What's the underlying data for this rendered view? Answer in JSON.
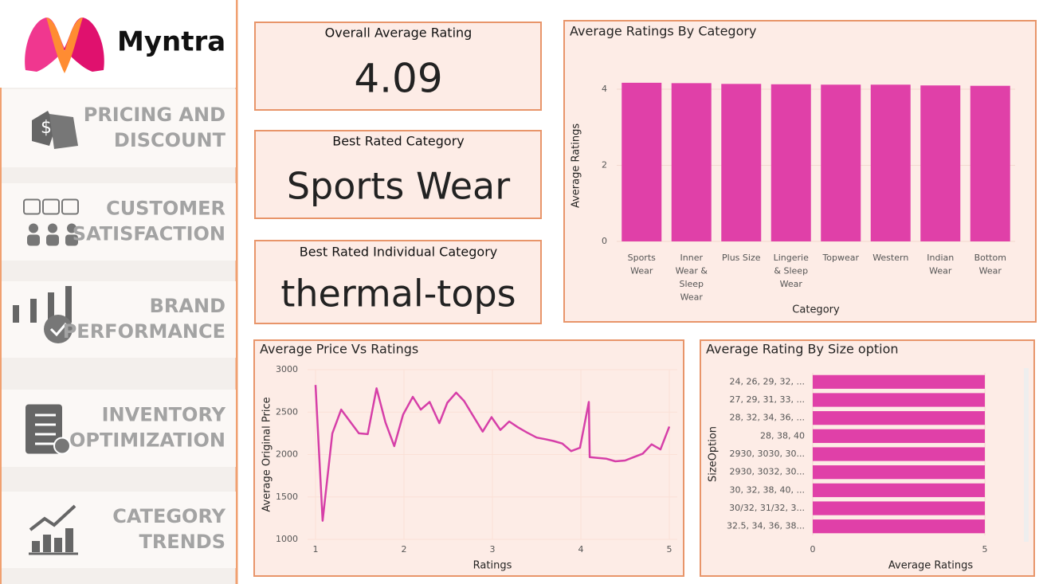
{
  "brand": "Myntra",
  "nav": [
    {
      "lines": [
        "PRICING AND",
        "DISCOUNT"
      ]
    },
    {
      "lines": [
        "CUSTOMER",
        "SATISFACTION"
      ]
    },
    {
      "lines": [
        "BRAND",
        "PERFORMANCE"
      ]
    },
    {
      "lines": [
        "INVENTORY",
        "OPTIMIZATION"
      ]
    },
    {
      "lines": [
        "CATEGORY",
        "TRENDS"
      ]
    }
  ],
  "cards": [
    {
      "title": "Overall Average Rating",
      "value": 4.09
    },
    {
      "title": "Best Rated Category",
      "value": "Sports Wear"
    },
    {
      "title": "Best Rated Individual Category",
      "value": "thermal-tops"
    }
  ],
  "chart_data": [
    {
      "type": "bar",
      "title": "Average Ratings By Category",
      "x_label": "Category",
      "y_label": "Average Ratings",
      "categories": [
        "Sports Wear",
        "Inner Wear & Sleep Wear",
        "Plus Size",
        "Lingerie & Sleep Wear",
        "Topwear",
        "Western",
        "Indian Wear",
        "Bottom Wear"
      ],
      "values": [
        4.17,
        4.16,
        4.14,
        4.13,
        4.12,
        4.12,
        4.1,
        4.09
      ],
      "color": "#e040a8",
      "ylim": [
        0,
        4.4
      ],
      "yticks": [
        0,
        2,
        4
      ]
    },
    {
      "type": "line",
      "title": "Average Price Vs Ratings",
      "x_label": "Ratings",
      "y_label": "Average Original Price",
      "x": [
        1.0,
        1.08,
        1.19,
        1.29,
        1.49,
        1.59,
        1.69,
        1.79,
        1.89,
        1.99,
        2.1,
        2.19,
        2.29,
        2.4,
        2.49,
        2.59,
        2.68,
        2.89,
        2.99,
        3.09,
        3.19,
        3.29,
        3.39,
        3.5,
        3.6,
        3.69,
        3.79,
        3.89,
        3.99,
        4.09,
        4.1,
        4.19,
        4.29,
        4.39,
        4.5,
        4.6,
        4.7,
        4.8,
        4.9,
        5.0
      ],
      "series": [
        {
          "name": "Average Original Price",
          "color": "#d63fa8",
          "values": [
            2820,
            1220,
            2250,
            2530,
            2250,
            2240,
            2780,
            2380,
            2100,
            2470,
            2680,
            2530,
            2620,
            2370,
            2610,
            2730,
            2630,
            2270,
            2440,
            2290,
            2390,
            2320,
            2260,
            2200,
            2180,
            2160,
            2130,
            2040,
            2080,
            2620,
            1970,
            1960,
            1950,
            1920,
            1930,
            1970,
            2010,
            2120,
            2060,
            2330
          ]
        }
      ],
      "xlim": [
        1,
        5
      ],
      "xticks": [
        1,
        2,
        3,
        4,
        5
      ],
      "ylim": [
        1000,
        3000
      ],
      "yticks": [
        1000,
        1500,
        2000,
        2500,
        3000
      ],
      "grid": true
    },
    {
      "type": "hbar",
      "title": "Average Rating By Size option",
      "x_label": "Average Ratings",
      "y_label": "SizeOption",
      "categories": [
        "24, 26, 29, 32, ...",
        "27, 29, 31, 33, ...",
        "28, 32, 34, 36, ...",
        "28, 38, 40",
        "2930, 3030, 30...",
        "2930, 3032, 30...",
        "30, 32, 38, 40, ...",
        "30/32, 31/32, 3...",
        "32.5, 34, 36, 38..."
      ],
      "values": [
        5,
        5,
        5,
        5,
        5,
        5,
        5,
        5,
        5
      ],
      "color": "#e040a8",
      "xlim": [
        0,
        5
      ],
      "xticks": [
        0,
        5
      ]
    }
  ]
}
